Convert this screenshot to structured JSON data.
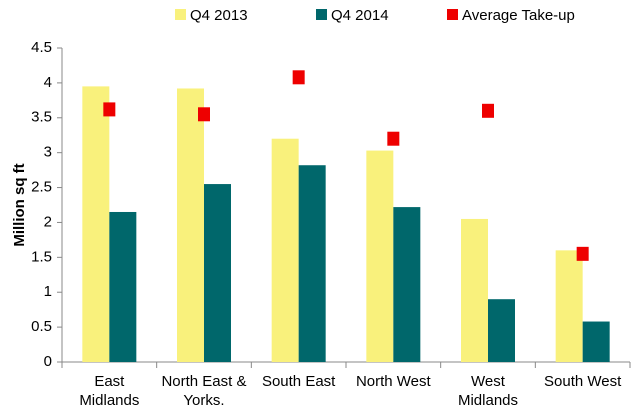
{
  "chart_data": {
    "type": "bar",
    "y_label": "Million sq ft",
    "categories": [
      "East Midlands",
      "North East & Yorks.",
      "South East",
      "North West",
      "West Midlands",
      "South West"
    ],
    "series": [
      {
        "name": "Q4 2013",
        "color": "#f9f17c",
        "type": "bar",
        "values": [
          3.95,
          3.92,
          3.2,
          3.03,
          2.05,
          1.6
        ]
      },
      {
        "name": "Q4 2014",
        "color": "#00676b",
        "type": "bar",
        "values": [
          2.15,
          2.55,
          2.82,
          2.22,
          0.9,
          0.58
        ]
      },
      {
        "name": "Average Take-up",
        "color": "#ee0000",
        "type": "scatter",
        "values": [
          3.62,
          3.55,
          4.08,
          3.2,
          3.6,
          1.55
        ]
      }
    ],
    "ylim": [
      0,
      4.5
    ],
    "yticks": [
      0,
      0.5,
      1,
      1.5,
      2,
      2.5,
      3,
      3.5,
      4,
      4.5
    ],
    "grid": false
  }
}
